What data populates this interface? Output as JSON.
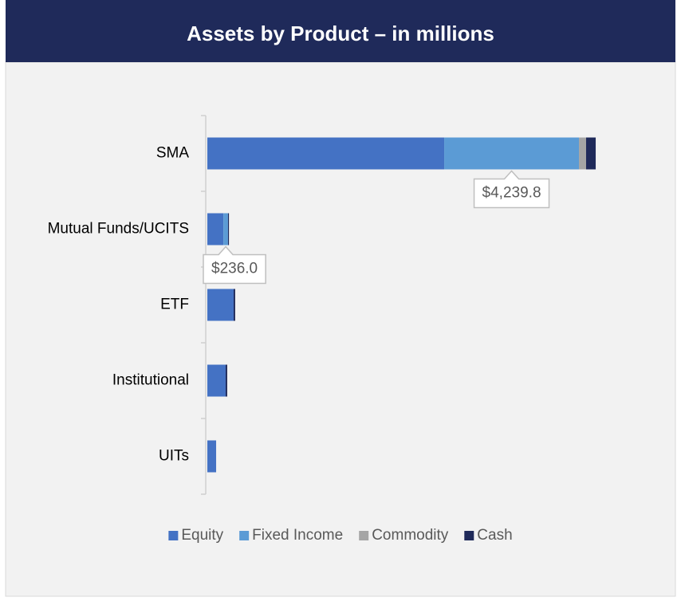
{
  "chart_data": {
    "type": "stacked-bar-horizontal",
    "title": "Assets by Product – in millions",
    "categories": [
      "SMA",
      "Mutual Funds/UCITS",
      "ETF",
      "Institutional",
      "UITs"
    ],
    "series": [
      {
        "name": "Equity",
        "color": "#4472c4",
        "values": [
          2586,
          176,
          287,
          200,
          96
        ]
      },
      {
        "name": "Fixed Income",
        "color": "#5b9bd5",
        "values": [
          1471,
          50,
          0,
          0,
          0
        ]
      },
      {
        "name": "Commodity",
        "color": "#a5a5a5",
        "values": [
          78,
          0,
          0,
          0,
          0
        ]
      },
      {
        "name": "Cash",
        "color": "#1f2a5a",
        "values": [
          104.8,
          10,
          17,
          17,
          0
        ]
      }
    ],
    "total_labels": [
      "$4,239.8",
      "$236.0",
      null,
      null,
      null
    ],
    "xlim": [
      0,
      4875
    ],
    "legend": "bottom"
  }
}
